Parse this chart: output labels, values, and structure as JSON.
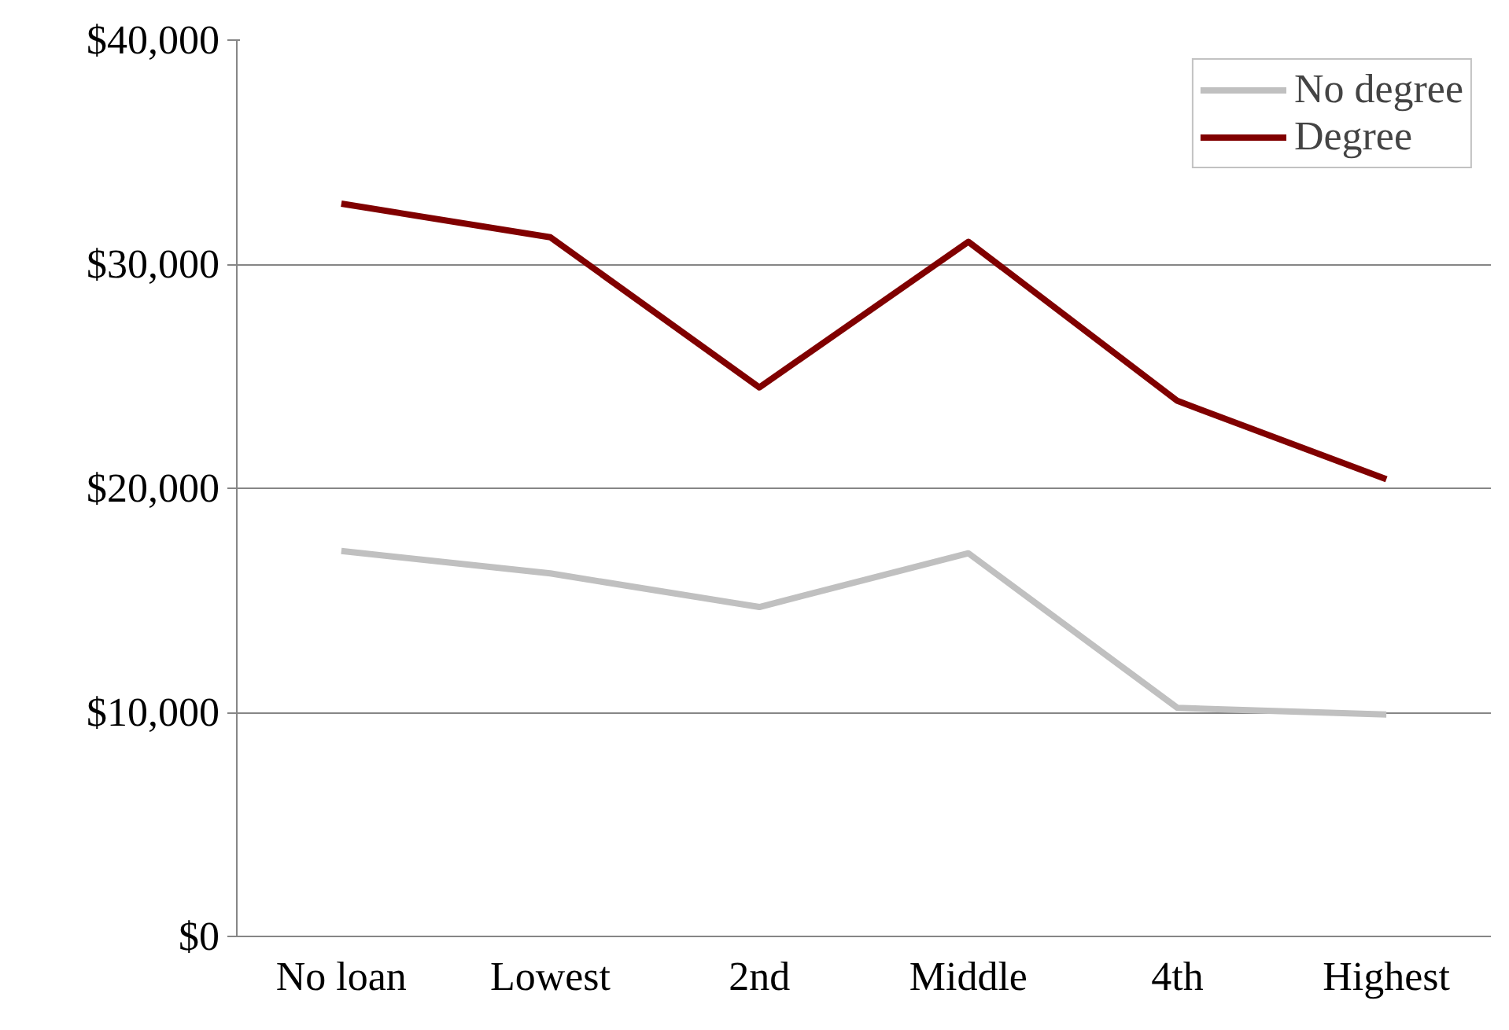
{
  "chart_data": {
    "type": "line",
    "categories": [
      "No loan",
      "Lowest",
      "2nd",
      "Middle",
      "4th",
      "Highest"
    ],
    "series": [
      {
        "name": "No degree",
        "color": "#c0c0c0",
        "values": [
          17200,
          16200,
          14700,
          17100,
          10200,
          9900
        ]
      },
      {
        "name": "Degree",
        "color": "#800000",
        "values": [
          32700,
          31200,
          24500,
          31000,
          23900,
          20400
        ]
      }
    ],
    "ylim": [
      0,
      40000
    ],
    "yticks": [
      {
        "value": 0,
        "label": "$0"
      },
      {
        "value": 10000,
        "label": "$10,000"
      },
      {
        "value": 20000,
        "label": "$20,000"
      },
      {
        "value": 30000,
        "label": "$30,000"
      },
      {
        "value": 40000,
        "label": "$40,000"
      }
    ],
    "grid": "y",
    "legend": "top right",
    "marker": "none",
    "line_style": "solid"
  }
}
